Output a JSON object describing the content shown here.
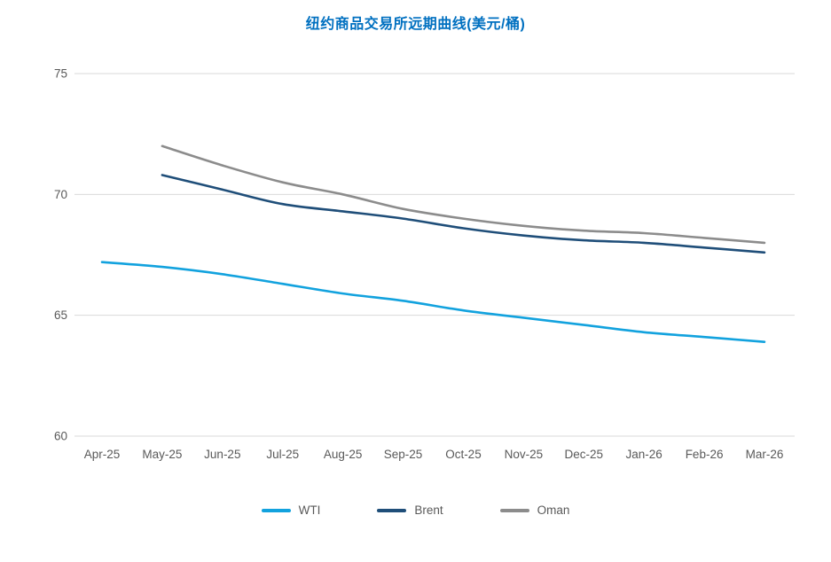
{
  "chart_data": {
    "type": "line",
    "title": "纽约商品交易所远期曲线(美元/桶)",
    "categories": [
      "Apr-25",
      "May-25",
      "Jun-25",
      "Jul-25",
      "Aug-25",
      "Sep-25",
      "Oct-25",
      "Nov-25",
      "Dec-25",
      "Jan-26",
      "Feb-26",
      "Mar-26"
    ],
    "series": [
      {
        "name": "WTI",
        "color": "#12A2DE",
        "values": [
          67.2,
          67.0,
          66.7,
          66.3,
          65.9,
          65.6,
          65.2,
          64.9,
          64.6,
          64.3,
          64.1,
          63.9
        ]
      },
      {
        "name": "Brent",
        "color": "#1F4E79",
        "values": [
          null,
          70.8,
          70.2,
          69.6,
          69.3,
          69.0,
          68.6,
          68.3,
          68.1,
          68.0,
          67.8,
          67.6
        ]
      },
      {
        "name": "Oman",
        "color": "#8C8C8C",
        "values": [
          null,
          72.0,
          71.2,
          70.5,
          70.0,
          69.4,
          69.0,
          68.7,
          68.5,
          68.4,
          68.2,
          68.0
        ]
      }
    ],
    "xlabel": "",
    "ylabel": "",
    "ylim": [
      60,
      75
    ],
    "yticks": [
      60,
      65,
      70,
      75
    ],
    "grid": true,
    "legend_position": "bottom"
  },
  "colors": {
    "title": "#0070C0",
    "gridline": "#D9D9D9",
    "axis_text": "#595959"
  }
}
